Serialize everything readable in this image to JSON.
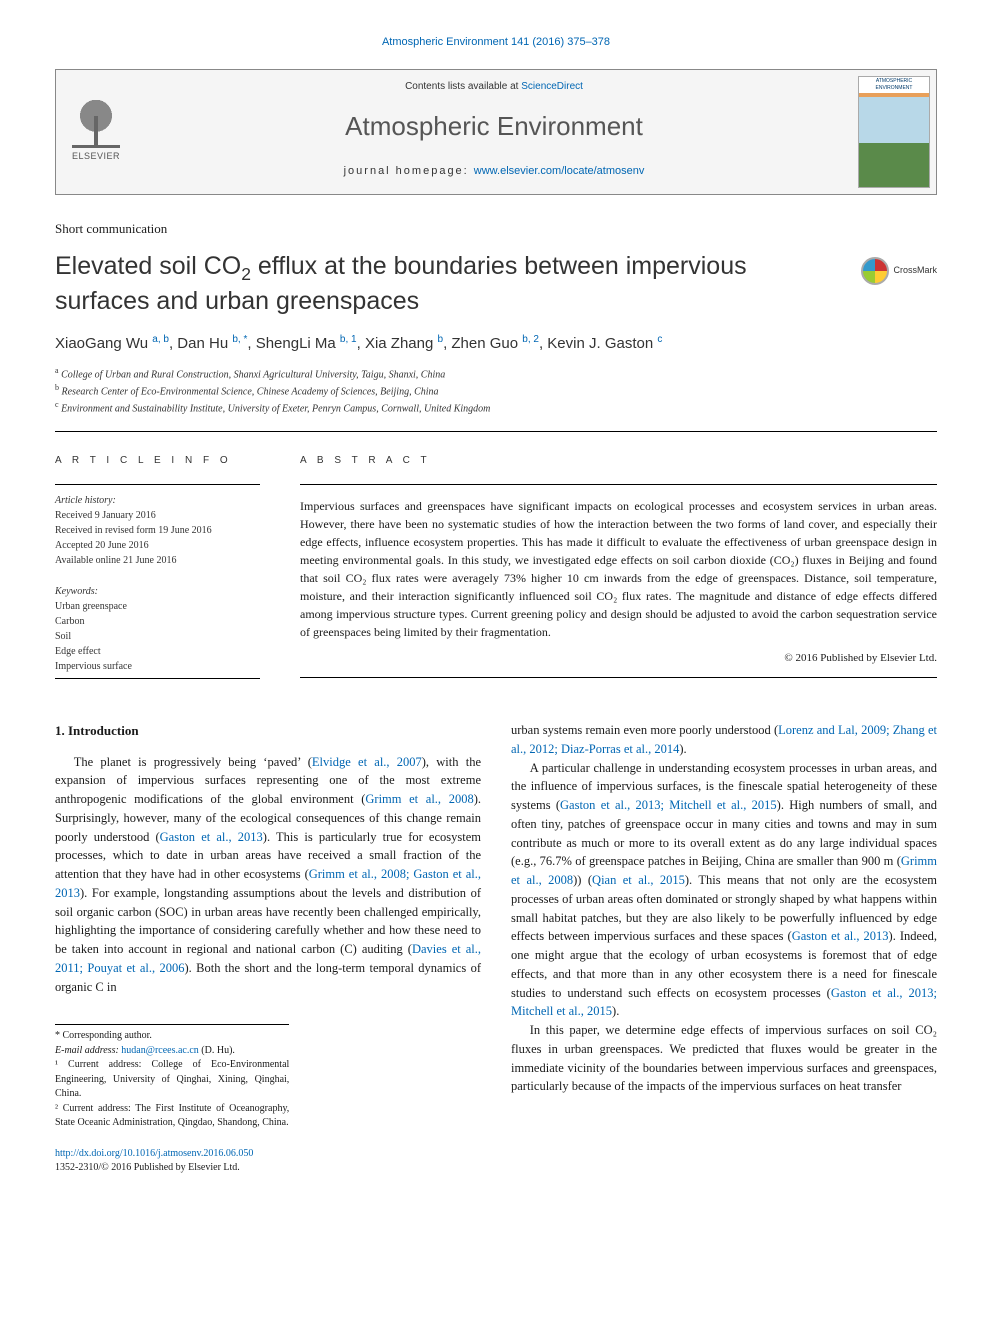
{
  "journal_ref_text": "Atmospheric Environment 141 (2016) 375–378",
  "header": {
    "contents_prefix": "Contents lists available at ",
    "contents_link": "ScienceDirect",
    "journal_name": "Atmospheric Environment",
    "home_prefix": "journal homepage: ",
    "home_link": "www.elsevier.com/locate/atmosenv",
    "publisher": "ELSEVIER",
    "cover_label": "ATMOSPHERIC ENVIRONMENT"
  },
  "article_type": "Short communication",
  "title_pre": "Elevated soil CO",
  "title_sub": "2",
  "title_post": " efflux at the boundaries between impervious surfaces and urban greenspaces",
  "crossmark_label": "CrossMark",
  "authors_html": "XiaoGang Wu <sup>a, b</sup>, Dan Hu <sup>b, *</sup>, ShengLi Ma <sup>b, 1</sup>, Xia Zhang <sup>b</sup>, Zhen Guo <sup>b, 2</sup>, Kevin J. Gaston <sup>c</sup>",
  "affiliations": [
    {
      "sup": "a",
      "text": " College of Urban and Rural Construction, Shanxi Agricultural University, Taigu, Shanxi, China"
    },
    {
      "sup": "b",
      "text": " Research Center of Eco-Environmental Science, Chinese Academy of Sciences, Beijing, China"
    },
    {
      "sup": "c",
      "text": " Environment and Sustainability Institute, University of Exeter, Penryn Campus, Cornwall, United Kingdom"
    }
  ],
  "info_label": "A R T I C L E   I N F O",
  "abstract_label": "A B S T R A C T",
  "history": {
    "heading": "Article history:",
    "received": "Received 9 January 2016",
    "revised": "Received in revised form 19 June 2016",
    "accepted": "Accepted 20 June 2016",
    "online": "Available online 21 June 2016"
  },
  "keywords": {
    "heading": "Keywords:",
    "items": [
      "Urban greenspace",
      "Carbon",
      "Soil",
      "Edge effect",
      "Impervious surface"
    ]
  },
  "abstract": "Impervious surfaces and greenspaces have significant impacts on ecological processes and ecosystem services in urban areas. However, there have been no systematic studies of how the interaction between the two forms of land cover, and especially their edge effects, influence ecosystem properties. This has made it difficult to evaluate the effectiveness of urban greenspace design in meeting environmental goals. In this study, we investigated edge effects on soil carbon dioxide (CO₂) fluxes in Beijing and found that soil CO₂ flux rates were averagely 73% higher 10 cm inwards from the edge of greenspaces. Distance, soil temperature, moisture, and their interaction significantly influenced soil CO₂ flux rates. The magnitude and distance of edge effects differed among impervious structure types. Current greening policy and design should be adjusted to avoid the carbon sequestration service of greenspaces being limited by their fragmentation.",
  "copyright": "© 2016 Published by Elsevier Ltd.",
  "section1_heading": "1. Introduction",
  "col_left": {
    "p1a": "The planet is progressively being ‘paved’ (",
    "r1": "Elvidge et al., 2007",
    "p1b": "), with the expansion of impervious surfaces representing one of the most extreme anthropogenic modifications of the global environment (",
    "r2": "Grimm et al., 2008",
    "p1c": "). Surprisingly, however, many of the ecological consequences of this change remain poorly understood (",
    "r3": "Gaston et al., 2013",
    "p1d": "). This is particularly true for ecosystem processes, which to date in urban areas have received a small fraction of the attention that they have had in other ecosystems (",
    "r4": "Grimm et al., 2008; Gaston et al., 2013",
    "p1e": "). For example, longstanding assumptions about the levels and distribution of soil organic carbon (SOC) in urban areas have recently been challenged empirically, highlighting the importance of considering carefully whether and how these need to be taken into account in regional and national carbon (C) auditing (",
    "r5": "Davies et al., 2011; Pouyat et al., 2006",
    "p1f": "). Both the short and the long-term temporal dynamics of organic C in"
  },
  "col_right": {
    "p1a": "urban systems remain even more poorly understood (",
    "r1": "Lorenz and Lal, 2009; Zhang et al., 2012; Diaz-Porras et al., 2014",
    "p1b": ").",
    "p2a": "A particular challenge in understanding ecosystem processes in urban areas, and the influence of impervious surfaces, is the finescale spatial heterogeneity of these systems (",
    "r2": "Gaston et al., 2013; Mitchell et al., 2015",
    "p2b": "). High numbers of small, and often tiny, patches of greenspace occur in many cities and towns and may in sum contribute as much or more to its overall extent as do any large individual spaces (e.g., 76.7% of greenspace patches in Beijing, China are smaller than 900 m (",
    "r3": "Grimm et al., 2008",
    "p2c": ")) (",
    "r4": "Qian et al., 2015",
    "p2d": "). This means that not only are the ecosystem processes of urban areas often dominated or strongly shaped by what happens within small habitat patches, but they are also likely to be powerfully influenced by edge effects between impervious surfaces and these spaces (",
    "r5": "Gaston et al., 2013",
    "p2e": "). Indeed, one might argue that the ecology of urban ecosystems is foremost that of edge effects, and that more than in any other ecosystem there is a need for finescale studies to understand such effects on ecosystem processes (",
    "r6": "Gaston et al., 2013; Mitchell et al., 2015",
    "p2f": ").",
    "p3": "In this paper, we determine edge effects of impervious surfaces on soil CO₂ fluxes in urban greenspaces. We predicted that fluxes would be greater in the immediate vicinity of the boundaries between impervious surfaces and greenspaces, particularly because of the impacts of the impervious surfaces on heat transfer"
  },
  "footnotes": {
    "corr": "* Corresponding author.",
    "email_label": "E-mail address: ",
    "email": "hudan@rcees.ac.cn",
    "email_who": " (D. Hu).",
    "f1": "¹ Current address: College of Eco-Environmental Engineering, University of Qinghai, Xining, Qinghai, China.",
    "f2": "² Current address: The First Institute of Oceanography, State Oceanic Administration, Qingdao, Shandong, China."
  },
  "doi": {
    "url": "http://dx.doi.org/10.1016/j.atmosenv.2016.06.050",
    "issn": "1352-2310/© 2016 Published by Elsevier Ltd."
  },
  "colors": {
    "link": "#0066b3",
    "text": "#1a1a1a",
    "heading_gray": "#555555"
  }
}
